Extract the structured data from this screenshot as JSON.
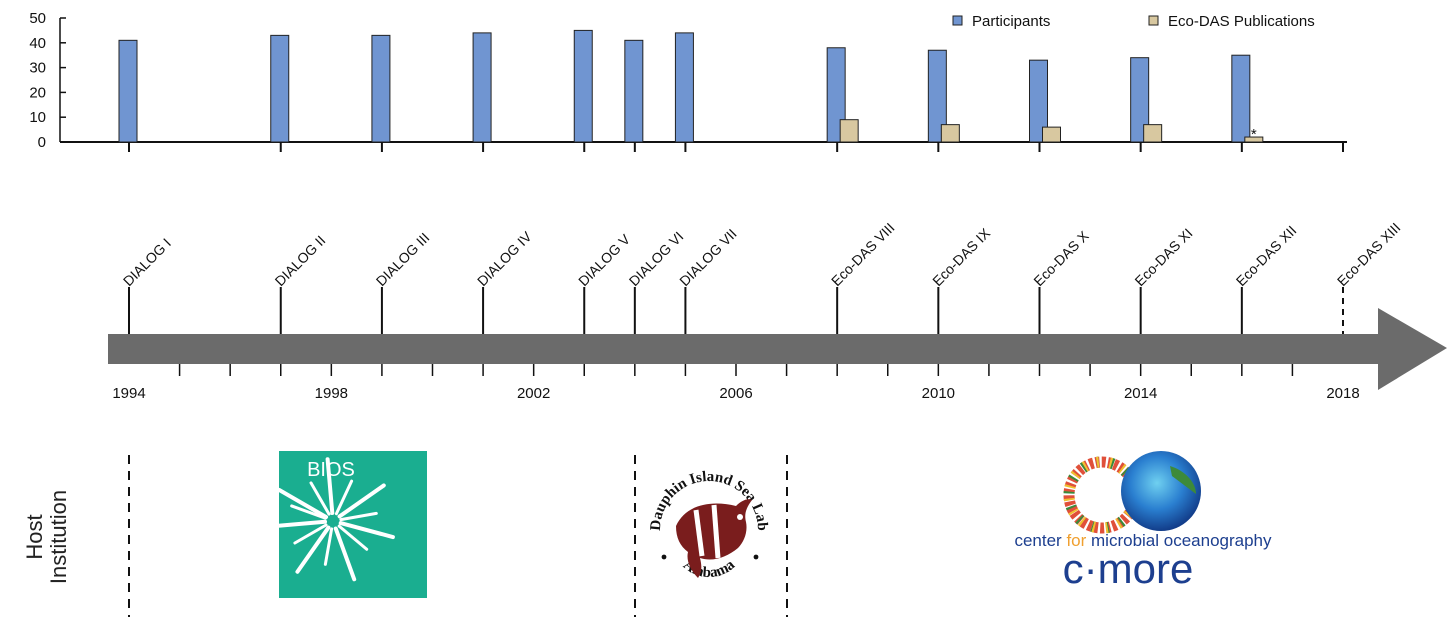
{
  "chart_data": {
    "type": "bar",
    "title": "",
    "xlabel": "",
    "ylabel": "",
    "ylim": [
      0,
      50
    ],
    "yticks": [
      0,
      10,
      20,
      30,
      40,
      50
    ],
    "legend": {
      "placement": "top-right",
      "entries": [
        "Participants",
        "Eco-DAS Publications"
      ]
    },
    "series": [
      {
        "name": "Participants",
        "color": "#7095d1",
        "x": [
          1994,
          1997,
          1999,
          2001,
          2003,
          2004,
          2005,
          2008,
          2010,
          2012,
          2014,
          2016
        ],
        "values": [
          41,
          43,
          43,
          44,
          45,
          41,
          44,
          38,
          37,
          33,
          34,
          35
        ]
      },
      {
        "name": "Eco-DAS Publications",
        "color": "#d8c8a0",
        "x": [
          2008,
          2010,
          2012,
          2014,
          2016
        ],
        "values": [
          9,
          7,
          6,
          7,
          2
        ]
      }
    ],
    "annotation": {
      "text": "*",
      "x": 2016,
      "series": "Eco-DAS Publications"
    }
  },
  "timeline": {
    "xlim": [
      1994,
      2018
    ],
    "year_labels": [
      "1994",
      "1998",
      "2002",
      "2006",
      "2010",
      "2014",
      "2018"
    ],
    "events": [
      {
        "year": 1994,
        "label": "DIALOG I",
        "dashed": false
      },
      {
        "year": 1997,
        "label": "DIALOG II",
        "dashed": false
      },
      {
        "year": 1999,
        "label": "DIALOG III",
        "dashed": false
      },
      {
        "year": 2001,
        "label": "DIALOG IV",
        "dashed": false
      },
      {
        "year": 2003,
        "label": "DIALOG V",
        "dashed": false
      },
      {
        "year": 2004,
        "label": "DIALOG VI",
        "dashed": false
      },
      {
        "year": 2005,
        "label": "DIALOG VII",
        "dashed": false
      },
      {
        "year": 2008,
        "label": "Eco-DAS VIII",
        "dashed": false
      },
      {
        "year": 2010,
        "label": "Eco-DAS IX",
        "dashed": false
      },
      {
        "year": 2012,
        "label": "Eco-DAS X",
        "dashed": false
      },
      {
        "year": 2014,
        "label": "Eco-DAS XI",
        "dashed": false
      },
      {
        "year": 2016,
        "label": "Eco-DAS XII",
        "dashed": false
      },
      {
        "year": 2018,
        "label": "Eco-DAS XIII",
        "dashed": true
      }
    ],
    "arrow_color": "#6b6b6b"
  },
  "host": {
    "side_label_line1": "Host",
    "side_label_line2": "Institution",
    "bios_text": "BIOS",
    "bios_color": "#1aae90",
    "disl_top": "Dauphin Island Sea Lab",
    "disl_bottom": "Alabama",
    "disl_fish_color": "#7a1d1d",
    "cmore_tagline_1": "center ",
    "cmore_tagline_2": "for",
    "cmore_tagline_3": " microbial oceanography",
    "cmore_name": "c·more",
    "cmore_blue": "#1d3f8f",
    "cmore_orange": "#f0a030"
  }
}
